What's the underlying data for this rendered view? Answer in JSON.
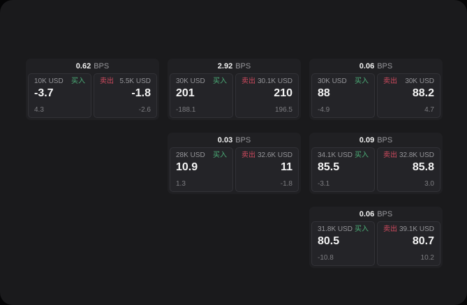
{
  "labels": {
    "bps": "BPS",
    "buy": "买入",
    "sell": "卖出"
  },
  "colors": {
    "buy_green": "#4caf78",
    "sell_red": "#cf4a5e",
    "panel_bg": "#1a1a1c",
    "card_bg": "#202023",
    "pane_bg": "#242428"
  },
  "cards": [
    {
      "bps": "0.62",
      "buy": {
        "amount": "10K USD",
        "value": "-3.7",
        "sub": "4.3"
      },
      "sell": {
        "amount": "5.5K USD",
        "value": "-1.8",
        "sub": "-2.6"
      }
    },
    {
      "bps": "2.92",
      "buy": {
        "amount": "30K USD",
        "value": "201",
        "sub": "-188.1"
      },
      "sell": {
        "amount": "30.1K USD",
        "value": "210",
        "sub": "196.5"
      }
    },
    {
      "bps": "0.06",
      "buy": {
        "amount": "30K USD",
        "value": "88",
        "sub": "-4.9"
      },
      "sell": {
        "amount": "30K USD",
        "value": "88.2",
        "sub": "4.7"
      }
    },
    {
      "bps": "0.03",
      "buy": {
        "amount": "28K USD",
        "value": "10.9",
        "sub": "1.3"
      },
      "sell": {
        "amount": "32.6K USD",
        "value": "11",
        "sub": "-1.8"
      }
    },
    {
      "bps": "0.09",
      "buy": {
        "amount": "34.1K USD",
        "value": "85.5",
        "sub": "-3.1"
      },
      "sell": {
        "amount": "32.8K USD",
        "value": "85.8",
        "sub": "3.0"
      }
    },
    {
      "bps": "0.06",
      "buy": {
        "amount": "31.8K USD",
        "value": "80.5",
        "sub": "-10.8"
      },
      "sell": {
        "amount": "39.1K USD",
        "value": "80.7",
        "sub": "10.2"
      }
    }
  ]
}
